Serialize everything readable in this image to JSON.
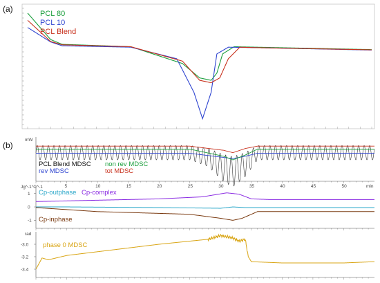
{
  "panel_a": {
    "label": "(a)",
    "legend": [
      {
        "text": "PCL 80",
        "color": "#1a9e3c"
      },
      {
        "text": "PCL 10",
        "color": "#2f45d0"
      },
      {
        "text": "PCL Blend",
        "color": "#c8321e"
      }
    ]
  },
  "panel_b": {
    "label": "(b)",
    "mdsc_legend": [
      {
        "text": "PCL Blend MDSC",
        "color": "#111111"
      },
      {
        "text": "non rev MDSC",
        "color": "#1a9e3c"
      },
      {
        "text": "rev MDSC",
        "color": "#2f45d0"
      },
      {
        "text": "tot MDSC",
        "color": "#c8321e"
      }
    ],
    "mdsc_unit": "mW",
    "cp_unit": "Jg^-1°C^-1",
    "cp_labels": [
      {
        "text": "Cp-outphase",
        "color": "#2aa7c9"
      },
      {
        "text": "Cp-complex",
        "color": "#8a2be2"
      },
      {
        "text": "Cp-inphase",
        "color": "#7a3a10"
      }
    ],
    "phase_unit": "rad",
    "phase_label": {
      "text": "phase 0 MDSC",
      "color": "#d9a514"
    },
    "time_axis_unit": "min"
  },
  "chart_data": [
    {
      "type": "line",
      "panel": "(a)",
      "xlim": [
        20,
        80
      ],
      "x_unit": "°C",
      "series": [
        {
          "name": "PCL 80",
          "color": "#1a9e3c",
          "x": [
            20,
            24,
            26,
            38,
            47,
            50,
            52,
            53,
            54,
            56,
            60,
            80
          ],
          "y": [
            6.5,
            1.0,
            0.0,
            -0.5,
            -4.0,
            -7.0,
            -7.5,
            -6.0,
            -2.0,
            -0.5,
            -0.6,
            -1.1
          ]
        },
        {
          "name": "PCL 10",
          "color": "#2f45d0",
          "x": [
            20,
            24,
            26,
            38,
            46,
            49,
            50.5,
            52,
            53,
            55,
            60,
            80
          ],
          "y": [
            3.5,
            0.5,
            -0.3,
            -0.6,
            -3.0,
            -10.0,
            -15.5,
            -10.0,
            -2.0,
            -0.6,
            -0.7,
            -1.2
          ]
        },
        {
          "name": "PCL Blend",
          "color": "#c8321e",
          "x": [
            20,
            24,
            26,
            38,
            47,
            50,
            52,
            53.5,
            55,
            57,
            60,
            80
          ],
          "y": [
            5.0,
            0.6,
            -0.1,
            -0.5,
            -3.5,
            -7.5,
            -8.0,
            -7.0,
            -3.0,
            -0.6,
            -0.7,
            -1.15
          ]
        }
      ]
    },
    {
      "type": "line",
      "panel": "(b) MDSC",
      "x_unit": "min",
      "xlim": [
        0,
        55
      ],
      "x_ticks": [
        5,
        10,
        15,
        20,
        25,
        30,
        35,
        40,
        45,
        50
      ],
      "series": [
        {
          "name": "PCL Blend MDSC",
          "color": "#333333",
          "kind": "modulated",
          "period": 0.9,
          "amplitude": 0.6,
          "baseline_x": [
            0,
            25,
            28,
            30.5,
            32,
            34,
            36,
            55
          ],
          "baseline_y": [
            0,
            0,
            -0.4,
            -1.3,
            -1.6,
            -1.0,
            0,
            0
          ]
        },
        {
          "name": "tot MDSC",
          "color": "#c8321e",
          "x": [
            0,
            25,
            30.5,
            32,
            34,
            36,
            55
          ],
          "y": [
            0.55,
            0.55,
            0.2,
            0.0,
            0.35,
            0.55,
            0.55
          ]
        },
        {
          "name": "rev MDSC",
          "color": "#2f45d0",
          "x": [
            0,
            25,
            30.5,
            32,
            34,
            36,
            55
          ],
          "y": [
            -0.05,
            -0.05,
            -0.4,
            -0.5,
            -0.3,
            -0.05,
            -0.05
          ]
        },
        {
          "name": "non rev MDSC",
          "color": "#1a9e3c",
          "x": [
            0,
            25,
            30.5,
            32,
            34,
            36,
            55
          ],
          "y": [
            0.3,
            0.3,
            -0.3,
            -0.6,
            -0.2,
            0.3,
            0.3
          ]
        }
      ]
    },
    {
      "type": "line",
      "panel": "(b) Cp",
      "x_unit": "min",
      "xlim": [
        0,
        55
      ],
      "y_ticks": [
        1,
        0,
        -1
      ],
      "series": [
        {
          "name": "Cp-complex",
          "color": "#8a2be2",
          "x": [
            0,
            20,
            27,
            31,
            33,
            35,
            38,
            55
          ],
          "y": [
            0.4,
            0.6,
            0.75,
            1.05,
            0.95,
            0.6,
            0.55,
            0.55
          ]
        },
        {
          "name": "Cp-outphase",
          "color": "#2aa7c9",
          "x": [
            0,
            5,
            20,
            30,
            32,
            34,
            40,
            55
          ],
          "y": [
            0.0,
            0.0,
            -0.05,
            -0.1,
            0.0,
            -0.05,
            -0.05,
            -0.05
          ]
        },
        {
          "name": "Cp-inphase",
          "color": "#7a3a10",
          "x": [
            0,
            10,
            25,
            30,
            32,
            33.5,
            36,
            40,
            55
          ],
          "y": [
            -0.05,
            -0.35,
            -0.55,
            -0.85,
            -1.0,
            -0.85,
            -0.35,
            -0.35,
            -0.35
          ]
        }
      ]
    },
    {
      "type": "line",
      "panel": "(b) phase",
      "x_unit": "min",
      "xlim": [
        0,
        55
      ],
      "y_ticks": [
        -3.0,
        -3.2,
        -3.4
      ],
      "series": [
        {
          "name": "phase 0 MDSC",
          "color": "#d9a514",
          "x": [
            0,
            1,
            2,
            5,
            10,
            15,
            20,
            25,
            28,
            30,
            32,
            33,
            34,
            34.5,
            35,
            40,
            50,
            55
          ],
          "y": [
            -3.4,
            -3.22,
            -3.25,
            -3.18,
            -3.12,
            -3.06,
            -3.0,
            -2.95,
            -2.92,
            -2.86,
            -2.9,
            -2.95,
            -2.92,
            -3.2,
            -3.28,
            -3.3,
            -3.3,
            -3.28
          ]
        }
      ]
    }
  ]
}
